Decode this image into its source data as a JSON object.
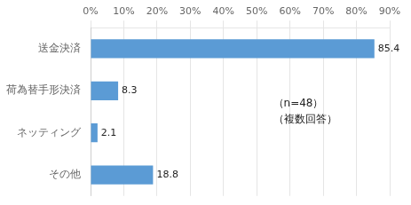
{
  "chart_data": {
    "type": "bar",
    "orientation": "horizontal",
    "categories": [
      "送金決済",
      "荷為替手形決済",
      "ネッティング",
      "その他"
    ],
    "values": [
      85.4,
      8.3,
      2.1,
      18.8
    ],
    "color": "#5b9bd5",
    "xlim": [
      0,
      90
    ],
    "xticks": [
      {
        "value": 0,
        "label": "0%"
      },
      {
        "value": 10,
        "label": "10%"
      },
      {
        "value": 20,
        "label": "20%"
      },
      {
        "value": 30,
        "label": "30%"
      },
      {
        "value": 40,
        "label": "40%"
      },
      {
        "value": 50,
        "label": "50%"
      },
      {
        "value": 60,
        "label": "60%"
      },
      {
        "value": 70,
        "label": "70%"
      },
      {
        "value": 80,
        "label": "80%"
      },
      {
        "value": 90,
        "label": "90%"
      }
    ],
    "grid": true,
    "data_labels": true,
    "annotations": [
      "（n=48）",
      "（複数回答）"
    ]
  }
}
